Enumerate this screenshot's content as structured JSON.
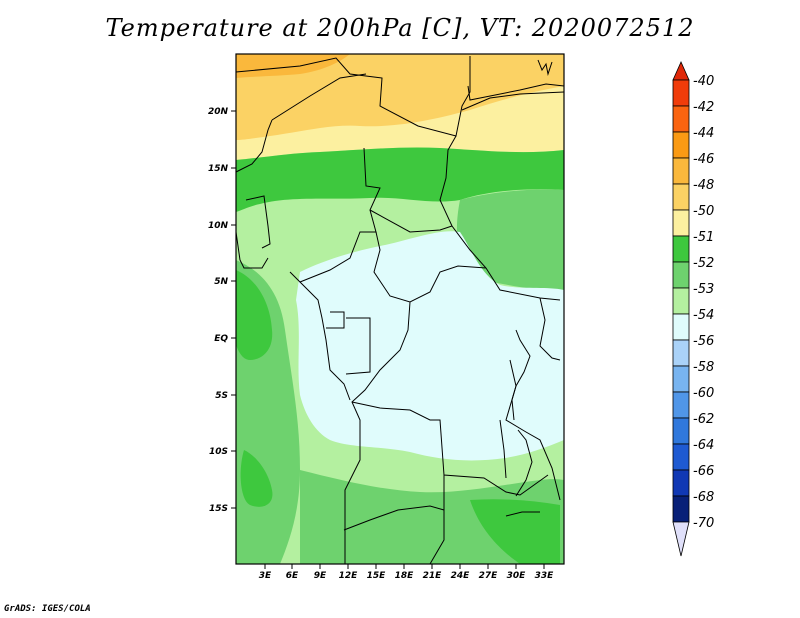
{
  "title": "Temperature at 200hPa [C], VT: 2020072512",
  "credit": "GrADS: IGES/COLA",
  "map": {
    "lat_labels": [
      "20N",
      "15N",
      "10N",
      "5N",
      "EQ",
      "5S",
      "10S",
      "15S"
    ],
    "lon_labels": [
      "3E",
      "6E",
      "9E",
      "12E",
      "15E",
      "18E",
      "21E",
      "24E",
      "27E",
      "30E",
      "33E"
    ]
  },
  "colorbar": {
    "labels": [
      "-40",
      "-42",
      "-44",
      "-46",
      "-48",
      "-50",
      "-51",
      "-52",
      "-53",
      "-54",
      "-56",
      "-58",
      "-60",
      "-62",
      "-64",
      "-66",
      "-68",
      "-70"
    ],
    "colors": {
      "gt_-40": "#e02808",
      "-40_-42": "#f03c0a",
      "-42_-44": "#fa6410",
      "-44_-46": "#fa9a14",
      "-46_-48": "#fab83c",
      "-48_-50": "#fbd264",
      "-50_-51": "#fcf0a0",
      "-51_-52": "#3ec83e",
      "-52_-53": "#6ed26e",
      "-53_-54": "#b4f0a0",
      "-54_-56": "#e0fcfc",
      "-56_-58": "#aad2f8",
      "-58_-60": "#78b4f0",
      "-60_-62": "#5096e8",
      "-62_-64": "#3078dc",
      "-64_-66": "#1e5ad2",
      "-66_-68": "#1038b4",
      "-68_-70": "#082078",
      "lt_-70": "#e0e0fa"
    }
  }
}
